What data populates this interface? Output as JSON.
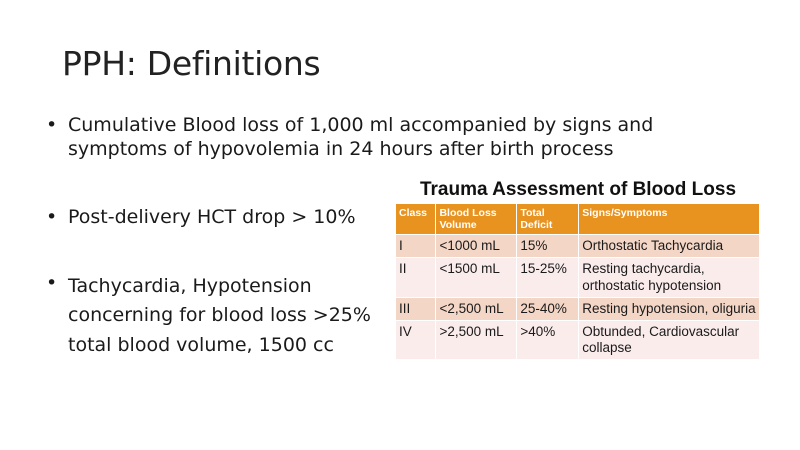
{
  "slide": {
    "title": "PPH: Definitions",
    "bullets": [
      "Cumulative Blood loss of 1,000 ml accompanied by signs and symptoms of hypovolemia in 24 hours after birth process",
      "Post-delivery HCT drop > 10%",
      "Tachycardia, Hypotension concerning for blood loss >25% total blood volume, 1500 cc"
    ],
    "bullet_glyph": "•"
  },
  "table": {
    "title": "Trauma Assessment of Blood Loss",
    "headers": [
      "Class",
      "Blood Loss Volume",
      "Total Deficit",
      "Signs/Symptoms"
    ],
    "rows": [
      [
        "I",
        "<1000 mL",
        "15%",
        "Orthostatic Tachycardia"
      ],
      [
        "II",
        "<1500 mL",
        "15-25%",
        "Resting tachycardia, orthostatic hypotension"
      ],
      [
        "III",
        "<2,500 mL",
        "25-40%",
        "Resting hypotension, oliguria"
      ],
      [
        "IV",
        ">2,500 mL",
        ">40%",
        "Obtunded, Cardiovascular collapse"
      ]
    ],
    "colors": {
      "header": "#e8931f",
      "row_odd": "#f4d6c6",
      "row_even": "#fbecec"
    }
  }
}
